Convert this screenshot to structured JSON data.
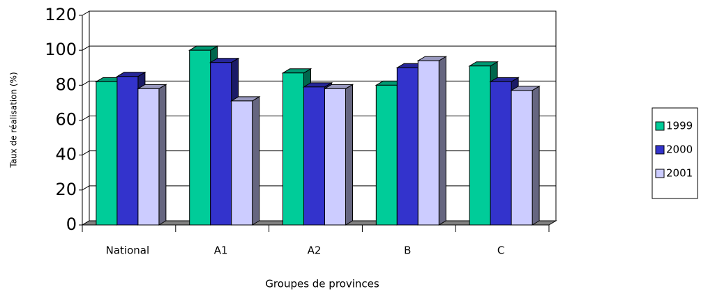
{
  "chart_data": {
    "type": "bar3d",
    "y_axis_label": "Taux de réalisation (%)",
    "x_axis_label": "Groupes de provinces",
    "categories": [
      "National",
      "A1",
      "A2",
      "B",
      "C"
    ],
    "series": [
      {
        "name": "1999",
        "color": "#00cc99",
        "values": [
          82,
          100,
          87,
          80,
          91
        ]
      },
      {
        "name": "2000",
        "color": "#3333cc",
        "values": [
          85,
          93,
          79,
          90,
          82
        ]
      },
      {
        "name": "2001",
        "color": "#ccccff",
        "values": [
          78,
          71,
          78,
          94,
          77
        ]
      }
    ],
    "ylim": [
      0,
      120
    ],
    "yticks": [
      0,
      20,
      40,
      60,
      80,
      100,
      120
    ],
    "grid": true,
    "legend": "right"
  }
}
